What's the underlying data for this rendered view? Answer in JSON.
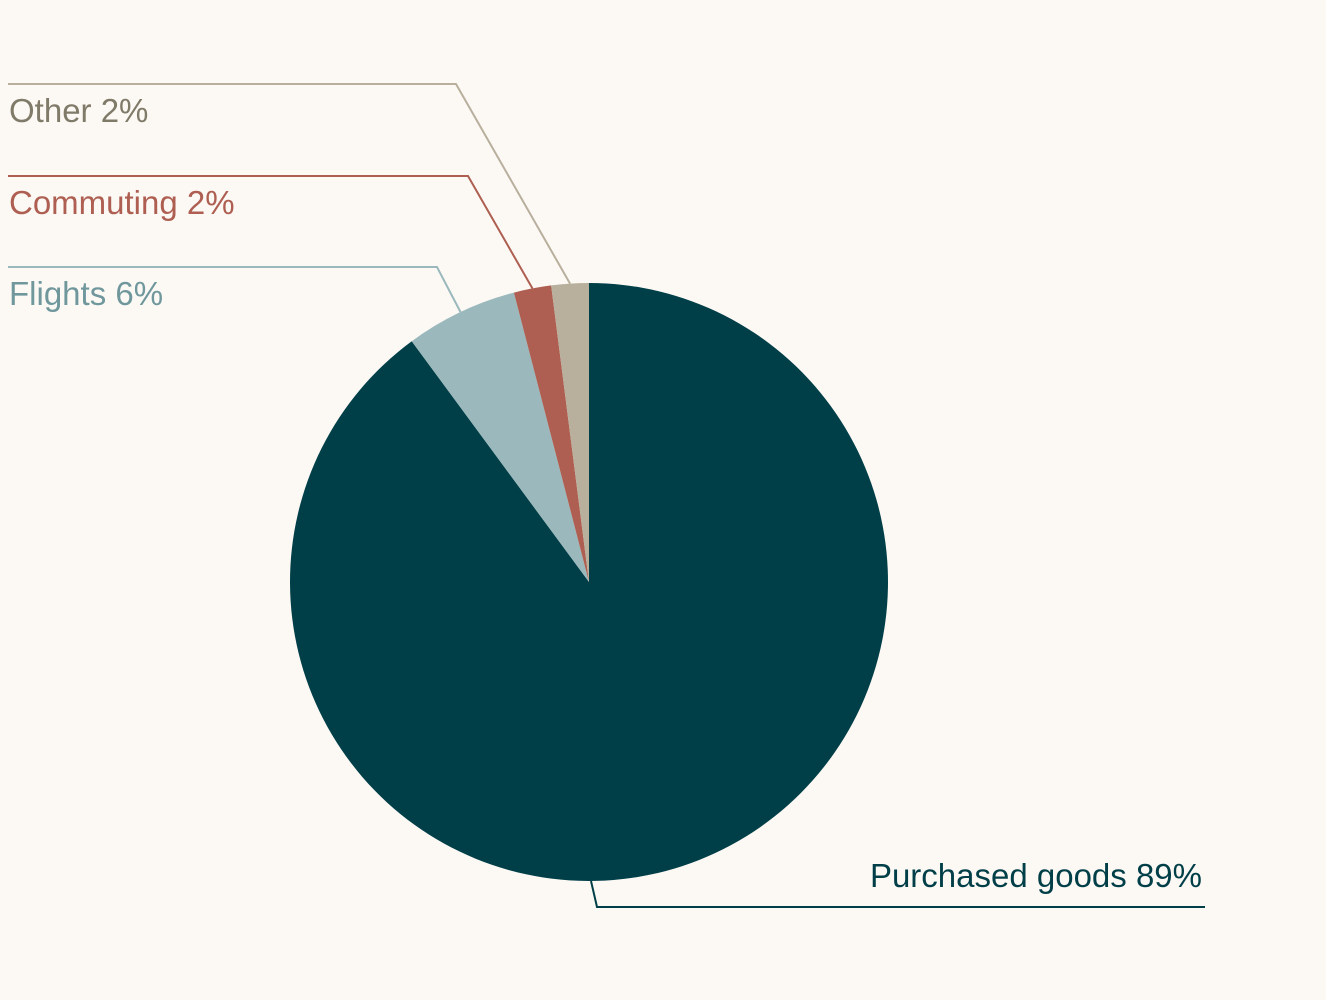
{
  "chart_data": {
    "type": "pie",
    "start_angle_deg": 0,
    "direction": "clockwise",
    "slices": [
      {
        "label": "Purchased goods",
        "percent_text": "89%",
        "value": 89,
        "color": "#013f48"
      },
      {
        "label": "Flights",
        "percent_text": "6%",
        "value": 6,
        "color": "#9bb9bc",
        "label_color": "#6f979c"
      },
      {
        "label": "Commuting",
        "percent_text": "2%",
        "value": 2,
        "color": "#ae5f51"
      },
      {
        "label": "Other",
        "percent_text": "2%",
        "value": 2,
        "color": "#b8af9c",
        "label_color": "#807a68"
      }
    ],
    "legend": "none"
  }
}
